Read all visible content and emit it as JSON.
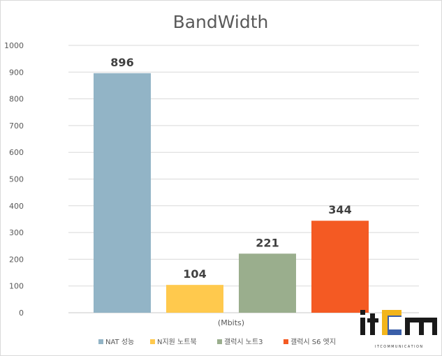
{
  "chart_data": {
    "type": "bar",
    "title": "BandWidth",
    "xlabel": "(Mbits)",
    "ylabel": "",
    "ylim": [
      0,
      1000
    ],
    "yticks": [
      0,
      100,
      200,
      300,
      400,
      500,
      600,
      700,
      800,
      900,
      1000
    ],
    "grid": true,
    "legend_position": "bottom",
    "series": [
      {
        "name": "NAT 성능",
        "value": 896,
        "color": "#92b4c6"
      },
      {
        "name": "N지원 노트북",
        "value": 104,
        "color": "#ffc94d"
      },
      {
        "name": "갤럭시 노트3",
        "value": 221,
        "color": "#9aae8d"
      },
      {
        "name": "갤럭시 S6 엣지",
        "value": 344,
        "color": "#f45a23"
      }
    ]
  },
  "logo": {
    "text": "itcm",
    "tagline": "I T C O M M U N I C A T I O N"
  }
}
